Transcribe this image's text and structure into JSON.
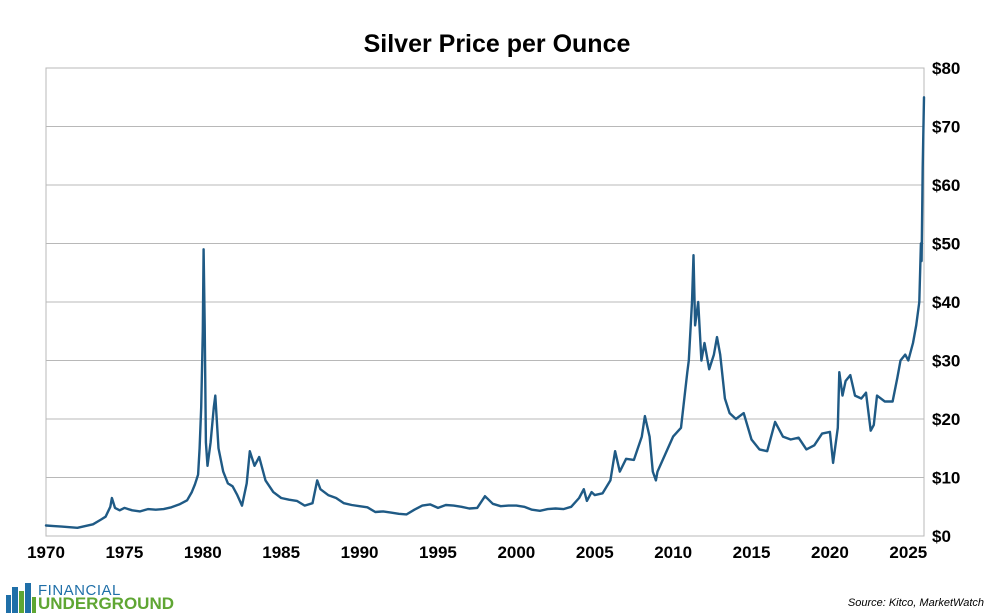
{
  "chart_data": {
    "type": "line",
    "title": "Silver Price per Ounce",
    "xlabel": "",
    "ylabel": "",
    "x_ticks": [
      "1970",
      "1975",
      "1980",
      "1985",
      "1990",
      "1995",
      "2000",
      "2005",
      "2010",
      "2015",
      "2020",
      "2025"
    ],
    "y_ticks": [
      "$0",
      "$10",
      "$20",
      "$30",
      "$40",
      "$50",
      "$60",
      "$70",
      "$80"
    ],
    "xlim": [
      1970,
      2026
    ],
    "ylim": [
      0,
      80
    ],
    "grid": true,
    "legend": "none",
    "series": [
      {
        "name": "Silver price (USD/oz)",
        "color": "#1f5a85",
        "points": [
          [
            1970.0,
            1.8
          ],
          [
            1970.5,
            1.7
          ],
          [
            1971.0,
            1.6
          ],
          [
            1971.5,
            1.5
          ],
          [
            1972.0,
            1.4
          ],
          [
            1972.5,
            1.7
          ],
          [
            1973.0,
            2.0
          ],
          [
            1973.5,
            2.8
          ],
          [
            1973.8,
            3.3
          ],
          [
            1974.1,
            5.0
          ],
          [
            1974.2,
            6.5
          ],
          [
            1974.4,
            4.8
          ],
          [
            1974.7,
            4.4
          ],
          [
            1975.0,
            4.8
          ],
          [
            1975.5,
            4.4
          ],
          [
            1976.0,
            4.2
          ],
          [
            1976.5,
            4.6
          ],
          [
            1977.0,
            4.5
          ],
          [
            1977.5,
            4.6
          ],
          [
            1978.0,
            4.9
          ],
          [
            1978.5,
            5.4
          ],
          [
            1979.0,
            6.1
          ],
          [
            1979.3,
            7.5
          ],
          [
            1979.5,
            8.8
          ],
          [
            1979.7,
            10.5
          ],
          [
            1979.8,
            15.0
          ],
          [
            1979.9,
            22.0
          ],
          [
            1980.0,
            35.0
          ],
          [
            1980.05,
            49.0
          ],
          [
            1980.12,
            36.0
          ],
          [
            1980.2,
            16.0
          ],
          [
            1980.3,
            12.0
          ],
          [
            1980.5,
            16.0
          ],
          [
            1980.7,
            22.0
          ],
          [
            1980.8,
            24.0
          ],
          [
            1981.0,
            15.0
          ],
          [
            1981.3,
            11.0
          ],
          [
            1981.6,
            9.0
          ],
          [
            1981.9,
            8.5
          ],
          [
            1982.2,
            7.0
          ],
          [
            1982.5,
            5.2
          ],
          [
            1982.8,
            9.0
          ],
          [
            1983.0,
            14.5
          ],
          [
            1983.3,
            12.0
          ],
          [
            1983.6,
            13.5
          ],
          [
            1984.0,
            9.5
          ],
          [
            1984.5,
            7.5
          ],
          [
            1985.0,
            6.5
          ],
          [
            1985.5,
            6.2
          ],
          [
            1986.0,
            6.0
          ],
          [
            1986.5,
            5.2
          ],
          [
            1987.0,
            5.6
          ],
          [
            1987.3,
            9.5
          ],
          [
            1987.5,
            8.0
          ],
          [
            1988.0,
            7.0
          ],
          [
            1988.5,
            6.5
          ],
          [
            1989.0,
            5.6
          ],
          [
            1989.5,
            5.3
          ],
          [
            1990.0,
            5.1
          ],
          [
            1990.5,
            4.9
          ],
          [
            1991.0,
            4.1
          ],
          [
            1991.5,
            4.2
          ],
          [
            1992.0,
            4.0
          ],
          [
            1992.5,
            3.8
          ],
          [
            1993.0,
            3.7
          ],
          [
            1993.5,
            4.5
          ],
          [
            1994.0,
            5.2
          ],
          [
            1994.5,
            5.4
          ],
          [
            1995.0,
            4.8
          ],
          [
            1995.5,
            5.3
          ],
          [
            1996.0,
            5.2
          ],
          [
            1996.5,
            5.0
          ],
          [
            1997.0,
            4.7
          ],
          [
            1997.5,
            4.8
          ],
          [
            1998.0,
            6.8
          ],
          [
            1998.5,
            5.5
          ],
          [
            1999.0,
            5.1
          ],
          [
            1999.5,
            5.2
          ],
          [
            2000.0,
            5.2
          ],
          [
            2000.5,
            5.0
          ],
          [
            2001.0,
            4.5
          ],
          [
            2001.5,
            4.3
          ],
          [
            2002.0,
            4.6
          ],
          [
            2002.5,
            4.7
          ],
          [
            2003.0,
            4.6
          ],
          [
            2003.5,
            5.0
          ],
          [
            2004.0,
            6.5
          ],
          [
            2004.3,
            8.0
          ],
          [
            2004.5,
            6.0
          ],
          [
            2004.8,
            7.5
          ],
          [
            2005.0,
            7.0
          ],
          [
            2005.5,
            7.3
          ],
          [
            2006.0,
            9.5
          ],
          [
            2006.3,
            14.5
          ],
          [
            2006.6,
            11.0
          ],
          [
            2007.0,
            13.2
          ],
          [
            2007.5,
            13.0
          ],
          [
            2008.0,
            17.0
          ],
          [
            2008.2,
            20.5
          ],
          [
            2008.5,
            17.0
          ],
          [
            2008.7,
            11.0
          ],
          [
            2008.9,
            9.5
          ],
          [
            2009.0,
            11.0
          ],
          [
            2009.5,
            14.0
          ],
          [
            2010.0,
            17.0
          ],
          [
            2010.5,
            18.5
          ],
          [
            2010.9,
            28.0
          ],
          [
            2011.0,
            30.0
          ],
          [
            2011.2,
            40.0
          ],
          [
            2011.3,
            48.0
          ],
          [
            2011.4,
            36.0
          ],
          [
            2011.6,
            40.0
          ],
          [
            2011.8,
            30.0
          ],
          [
            2012.0,
            33.0
          ],
          [
            2012.3,
            28.5
          ],
          [
            2012.6,
            31.0
          ],
          [
            2012.8,
            34.0
          ],
          [
            2013.0,
            31.0
          ],
          [
            2013.3,
            23.5
          ],
          [
            2013.6,
            21.0
          ],
          [
            2014.0,
            20.0
          ],
          [
            2014.5,
            21.0
          ],
          [
            2015.0,
            16.5
          ],
          [
            2015.5,
            14.8
          ],
          [
            2016.0,
            14.5
          ],
          [
            2016.5,
            19.5
          ],
          [
            2017.0,
            17.0
          ],
          [
            2017.5,
            16.5
          ],
          [
            2018.0,
            16.8
          ],
          [
            2018.5,
            14.8
          ],
          [
            2019.0,
            15.5
          ],
          [
            2019.5,
            17.5
          ],
          [
            2020.0,
            17.8
          ],
          [
            2020.2,
            12.5
          ],
          [
            2020.5,
            18.5
          ],
          [
            2020.6,
            28.0
          ],
          [
            2020.8,
            24.0
          ],
          [
            2021.0,
            26.5
          ],
          [
            2021.3,
            27.5
          ],
          [
            2021.6,
            24.0
          ],
          [
            2022.0,
            23.5
          ],
          [
            2022.3,
            24.5
          ],
          [
            2022.6,
            18.0
          ],
          [
            2022.8,
            19.0
          ],
          [
            2023.0,
            24.0
          ],
          [
            2023.5,
            23.0
          ],
          [
            2024.0,
            23.0
          ],
          [
            2024.3,
            27.0
          ],
          [
            2024.5,
            30.0
          ],
          [
            2024.8,
            31.0
          ],
          [
            2025.0,
            30.0
          ],
          [
            2025.3,
            33.0
          ],
          [
            2025.5,
            36.0
          ],
          [
            2025.7,
            40.0
          ],
          [
            2025.8,
            50.0
          ],
          [
            2025.85,
            47.0
          ],
          [
            2025.92,
            63.0
          ],
          [
            2026.0,
            75.0
          ]
        ]
      }
    ]
  },
  "source_text": "Source: Kitco, MarketWatch",
  "logo": {
    "line1": "FINANCIAL",
    "line2": "UNDERGROUND",
    "color_top": "#1f6fa8",
    "color_bottom": "#5fa633"
  }
}
